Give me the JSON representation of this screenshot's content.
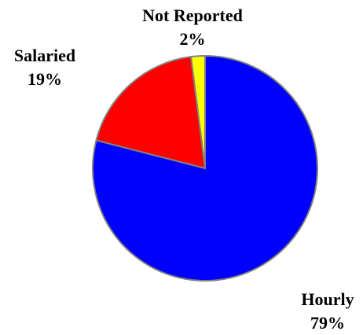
{
  "chart_data": {
    "type": "pie",
    "categories": [
      "Hourly",
      "Salaried",
      "Not Reported"
    ],
    "values": [
      79,
      19,
      2
    ],
    "value_labels": [
      "79%",
      "19%",
      "2%"
    ],
    "colors": [
      "#0000ff",
      "#ff0000",
      "#ffff00"
    ]
  }
}
